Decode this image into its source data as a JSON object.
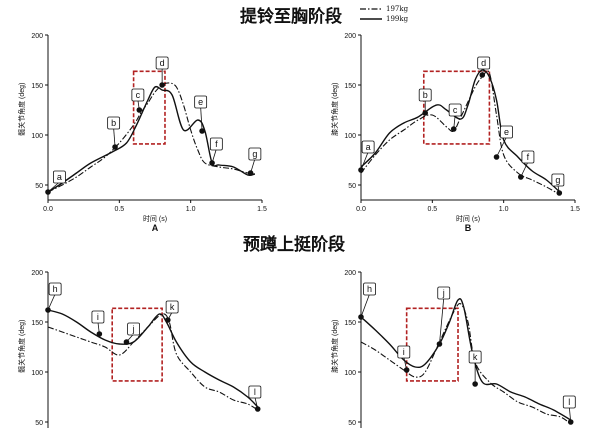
{
  "titles": {
    "top": "提铃至胸阶段",
    "bottom": "预蹲上挺阶段"
  },
  "legend": [
    {
      "name": "197kg",
      "style": "dashdot"
    },
    {
      "name": "199kg",
      "style": "solid"
    }
  ],
  "chart_data": [
    {
      "type": "line",
      "panel_label": "A",
      "ylabel": "髋关节角度 (deg)",
      "xlabel": "时间 (s)",
      "xlim": [
        0,
        1.5
      ],
      "ylim": [
        35,
        200
      ],
      "xticks": [
        "0.0",
        "0.5",
        "1.0",
        "1.5"
      ],
      "yticks": [
        "50",
        "100",
        "150",
        "200"
      ],
      "highlight_x": [
        0.6,
        0.82
      ],
      "series": [
        {
          "name": "197kg",
          "style": "dashdot",
          "x": [
            0,
            0.1,
            0.2,
            0.3,
            0.4,
            0.5,
            0.6,
            0.65,
            0.7,
            0.75,
            0.8,
            0.85,
            0.9,
            0.95,
            1.0,
            1.05,
            1.1,
            1.2,
            1.3,
            1.4,
            1.45
          ],
          "y": [
            43,
            50,
            58,
            68,
            78,
            92,
            110,
            122,
            132,
            143,
            150,
            152,
            148,
            130,
            105,
            85,
            72,
            68,
            66,
            62,
            61
          ]
        },
        {
          "name": "199kg",
          "style": "solid",
          "x": [
            0,
            0.1,
            0.2,
            0.3,
            0.45,
            0.55,
            0.62,
            0.7,
            0.75,
            0.8,
            0.87,
            0.95,
            1.05,
            1.1,
            1.15,
            1.2,
            1.3,
            1.4,
            1.45
          ],
          "y": [
            43,
            52,
            62,
            72,
            83,
            92,
            110,
            135,
            148,
            145,
            140,
            105,
            115,
            104,
            72,
            70,
            68,
            60,
            61
          ]
        }
      ],
      "markers": [
        {
          "label": "a",
          "x": 0.0,
          "y": 43,
          "lx": 0.08,
          "ly": 58
        },
        {
          "label": "b",
          "x": 0.47,
          "y": 88,
          "lx": 0.46,
          "ly": 112
        },
        {
          "label": "c",
          "x": 0.64,
          "y": 125,
          "lx": 0.63,
          "ly": 140
        },
        {
          "label": "d",
          "x": 0.8,
          "y": 150,
          "lx": 0.8,
          "ly": 172
        },
        {
          "label": "e",
          "x": 1.08,
          "y": 104,
          "lx": 1.07,
          "ly": 133
        },
        {
          "label": "f",
          "x": 1.15,
          "y": 72,
          "lx": 1.18,
          "ly": 91
        },
        {
          "label": "g",
          "x": 1.42,
          "y": 62,
          "lx": 1.45,
          "ly": 81
        }
      ]
    },
    {
      "type": "line",
      "panel_label": "B",
      "ylabel": "膝关节角度 (deg)",
      "xlabel": "时间 (s)",
      "xlim": [
        0,
        1.5
      ],
      "ylim": [
        35,
        200
      ],
      "xticks": [
        "0.0",
        "0.5",
        "1.0",
        "1.5"
      ],
      "yticks": [
        "50",
        "100",
        "150",
        "200"
      ],
      "highlight_x": [
        0.44,
        0.9
      ],
      "series": [
        {
          "name": "197kg",
          "style": "dashdot",
          "x": [
            0,
            0.1,
            0.2,
            0.3,
            0.4,
            0.5,
            0.6,
            0.65,
            0.7,
            0.8,
            0.85,
            0.9,
            0.95,
            1.0,
            1.1,
            1.2,
            1.3,
            1.4
          ],
          "y": [
            62,
            80,
            95,
            105,
            115,
            120,
            108,
            104,
            118,
            148,
            158,
            162,
            120,
            80,
            62,
            55,
            48,
            40
          ]
        },
        {
          "name": "199kg",
          "style": "solid",
          "x": [
            0,
            0.1,
            0.2,
            0.3,
            0.4,
            0.5,
            0.55,
            0.6,
            0.7,
            0.75,
            0.8,
            0.85,
            0.9,
            0.95,
            1.0,
            1.1,
            1.2,
            1.3,
            1.4
          ],
          "y": [
            68,
            82,
            102,
            112,
            118,
            128,
            130,
            125,
            116,
            130,
            155,
            165,
            158,
            135,
            95,
            78,
            64,
            55,
            42
          ]
        }
      ],
      "markers": [
        {
          "label": "a",
          "x": 0.0,
          "y": 65,
          "lx": 0.05,
          "ly": 88
        },
        {
          "label": "b",
          "x": 0.45,
          "y": 122,
          "lx": 0.45,
          "ly": 140
        },
        {
          "label": "c",
          "x": 0.65,
          "y": 106,
          "lx": 0.66,
          "ly": 125
        },
        {
          "label": "d",
          "x": 0.85,
          "y": 160,
          "lx": 0.86,
          "ly": 172
        },
        {
          "label": "e",
          "x": 0.95,
          "y": 78,
          "lx": 1.02,
          "ly": 103
        },
        {
          "label": "f",
          "x": 1.12,
          "y": 58,
          "lx": 1.17,
          "ly": 78
        },
        {
          "label": "g",
          "x": 1.39,
          "y": 42,
          "lx": 1.38,
          "ly": 55
        }
      ]
    },
    {
      "type": "line",
      "panel_label": "",
      "ylabel": "髋关节角度 (deg)",
      "xlabel": "",
      "xlim": [
        0,
        1.5
      ],
      "ylim": [
        35,
        200
      ],
      "xticks": [],
      "yticks": [
        "50",
        "100",
        "150",
        "200"
      ],
      "highlight_x": [
        0.45,
        0.8
      ],
      "series": [
        {
          "name": "197kg",
          "style": "dashdot",
          "x": [
            0,
            0.1,
            0.2,
            0.3,
            0.4,
            0.5,
            0.6,
            0.7,
            0.8,
            0.85,
            0.9,
            1.0,
            1.1,
            1.2,
            1.3,
            1.4,
            1.47
          ],
          "y": [
            145,
            140,
            135,
            130,
            125,
            117,
            130,
            145,
            158,
            150,
            118,
            100,
            85,
            80,
            72,
            68,
            62
          ]
        },
        {
          "name": "199kg",
          "style": "solid",
          "x": [
            0,
            0.1,
            0.2,
            0.3,
            0.4,
            0.5,
            0.6,
            0.7,
            0.78,
            0.83,
            0.9,
            1.0,
            1.1,
            1.2,
            1.3,
            1.4,
            1.47
          ],
          "y": [
            162,
            158,
            150,
            140,
            132,
            128,
            130,
            145,
            158,
            150,
            130,
            110,
            100,
            92,
            85,
            75,
            65
          ]
        }
      ],
      "markers": [
        {
          "label": "h",
          "x": 0.0,
          "y": 162,
          "lx": 0.05,
          "ly": 183
        },
        {
          "label": "i",
          "x": 0.36,
          "y": 138,
          "lx": 0.35,
          "ly": 155
        },
        {
          "label": "j",
          "x": 0.55,
          "y": 130,
          "lx": 0.6,
          "ly": 143
        },
        {
          "label": "k",
          "x": 0.84,
          "y": 152,
          "lx": 0.87,
          "ly": 165
        },
        {
          "label": "l",
          "x": 1.47,
          "y": 63,
          "lx": 1.45,
          "ly": 80
        }
      ]
    },
    {
      "type": "line",
      "panel_label": "",
      "ylabel": "膝关节角度 (deg)",
      "xlabel": "",
      "xlim": [
        0,
        1.5
      ],
      "ylim": [
        35,
        200
      ],
      "xticks": [],
      "yticks": [
        "50",
        "100",
        "150",
        "200"
      ],
      "highlight_x": [
        0.32,
        0.68
      ],
      "series": [
        {
          "name": "197kg",
          "style": "dashdot",
          "x": [
            0,
            0.1,
            0.2,
            0.3,
            0.38,
            0.45,
            0.55,
            0.65,
            0.7,
            0.75,
            0.8,
            0.9,
            1.0,
            1.1,
            1.2,
            1.3,
            1.4,
            1.47
          ],
          "y": [
            130,
            122,
            112,
            102,
            95,
            100,
            130,
            160,
            168,
            150,
            110,
            90,
            80,
            70,
            65,
            58,
            55,
            48
          ]
        },
        {
          "name": "199kg",
          "style": "solid",
          "x": [
            0,
            0.1,
            0.2,
            0.3,
            0.38,
            0.45,
            0.55,
            0.62,
            0.68,
            0.72,
            0.78,
            0.85,
            0.95,
            1.05,
            1.15,
            1.25,
            1.35,
            1.47
          ],
          "y": [
            155,
            142,
            128,
            112,
            105,
            108,
            128,
            150,
            172,
            165,
            120,
            90,
            88,
            80,
            75,
            68,
            62,
            52
          ]
        }
      ],
      "markers": [
        {
          "label": "h",
          "x": 0.0,
          "y": 155,
          "lx": 0.06,
          "ly": 183
        },
        {
          "label": "i",
          "x": 0.32,
          "y": 102,
          "lx": 0.3,
          "ly": 120
        },
        {
          "label": "j",
          "x": 0.55,
          "y": 128,
          "lx": 0.58,
          "ly": 179
        },
        {
          "label": "k",
          "x": 0.8,
          "y": 88,
          "lx": 0.8,
          "ly": 115
        },
        {
          "label": "l",
          "x": 1.47,
          "y": 50,
          "lx": 1.46,
          "ly": 70
        }
      ]
    }
  ]
}
